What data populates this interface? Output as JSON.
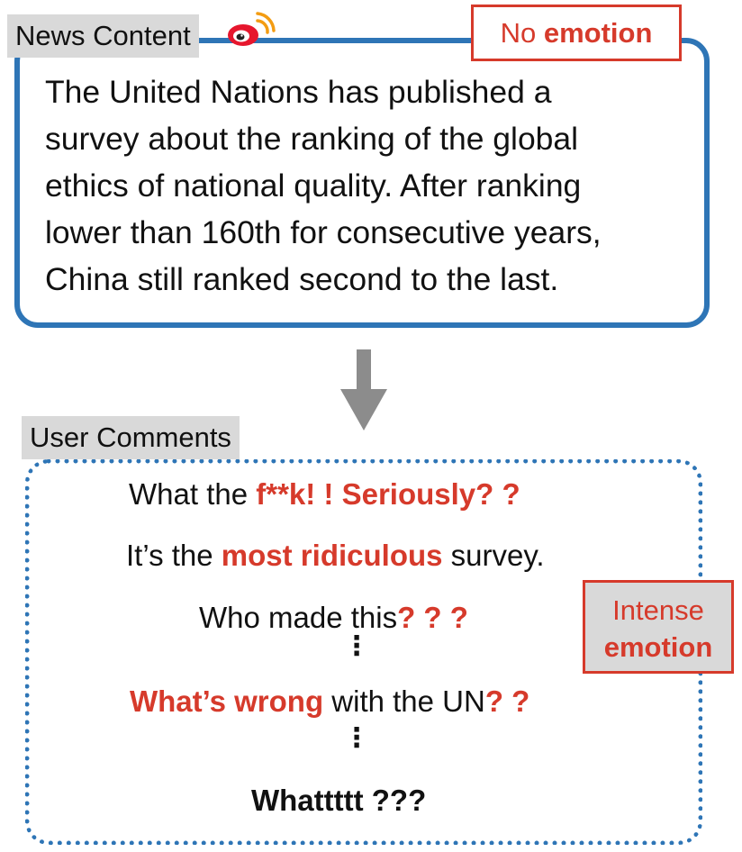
{
  "news": {
    "label": "News Content",
    "badge_prefix": "No",
    "badge_bold": "emotion",
    "lines": [
      "The United Nations has published a",
      "survey about the ranking of the global",
      "ethics of national quality. After ranking",
      "lower than 160th for consecutive years,",
      "China still ranked second to the last."
    ]
  },
  "comments": {
    "label": "User Comments",
    "badge_line1": "Intense",
    "badge_line2": "emotion",
    "c1": {
      "a": "What the ",
      "b": "f**k! !  Seriously? ?"
    },
    "c2": {
      "a": "It’s the ",
      "b": "most ridiculous",
      "c": " survey."
    },
    "c3": {
      "a": "Who made this",
      "b": "? ? ?"
    },
    "c4": {
      "a": "What’s wrong",
      "b": " with the UN",
      "c": "? ?"
    },
    "c5": "Whattttt ???",
    "ellipsis": "⋮"
  },
  "colors": {
    "accent_blue": "#2e75b6",
    "emotion_red": "#d63a2b",
    "tag_gray": "#d9d9d9",
    "arrow_gray": "#8c8c8c"
  },
  "icons": {
    "platform": "weibo-logo-icon",
    "flow": "arrow-down-icon"
  }
}
